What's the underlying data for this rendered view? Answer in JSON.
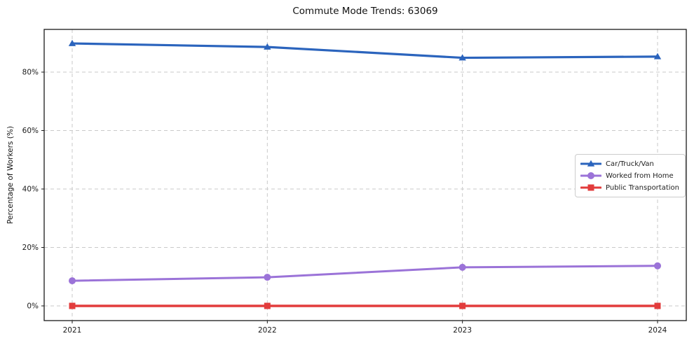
{
  "title": "Commute Mode Trends: 63069",
  "chart_data": {
    "type": "line",
    "title": "Commute Mode Trends: 63069",
    "xlabel": "",
    "ylabel": "Percentage of Workers (%)",
    "x": [
      "2021",
      "2022",
      "2023",
      "2024"
    ],
    "series": [
      {
        "name": "Car/Truck/Van",
        "color": "#2b64bd",
        "marker": "triangle",
        "line_width": 3.2,
        "values": [
          89.8,
          88.6,
          84.9,
          85.3
        ]
      },
      {
        "name": "Worked from Home",
        "color": "#9b73d8",
        "marker": "circle",
        "line_width": 3.0,
        "values": [
          8.6,
          9.8,
          13.2,
          13.7
        ]
      },
      {
        "name": "Public Transportation",
        "color": "#e23c3c",
        "marker": "square",
        "line_width": 3.6,
        "values": [
          0.0,
          0.0,
          0.0,
          0.0
        ]
      }
    ],
    "yticks": [
      0,
      20,
      40,
      60,
      80
    ],
    "ytick_labels": [
      "0%",
      "20%",
      "40%",
      "60%",
      "80%"
    ],
    "ylim": [
      -5,
      94.6
    ],
    "xlim": [
      2020.85,
      2024.15
    ],
    "grid": "both-dashed",
    "legend_position": "center-right"
  }
}
